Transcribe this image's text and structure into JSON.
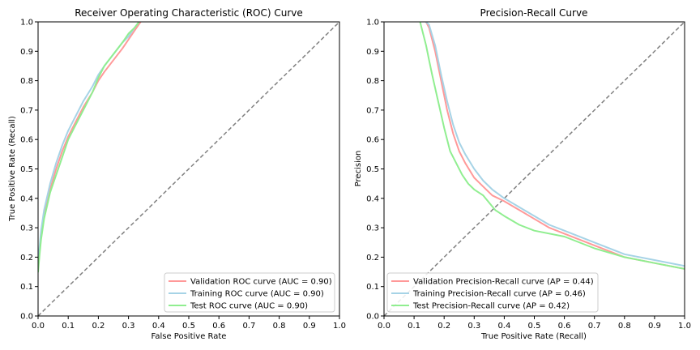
{
  "chart_data": [
    {
      "type": "line",
      "title": "Receiver Operating Characteristic (ROC) Curve",
      "xlabel": "False Positive Rate",
      "ylabel": "True Positive Rate (Recall)",
      "xlim": [
        0.0,
        1.0
      ],
      "ylim": [
        0.0,
        1.0
      ],
      "xticks": [
        "0.0",
        "0.1",
        "0.2",
        "0.3",
        "0.4",
        "0.5",
        "0.6",
        "0.7",
        "0.8",
        "0.9",
        "1.0"
      ],
      "yticks": [
        "0.0",
        "0.1",
        "0.2",
        "0.3",
        "0.4",
        "0.5",
        "0.6",
        "0.7",
        "0.8",
        "0.9",
        "1.0"
      ],
      "grid": false,
      "legend_position": "lower right",
      "reference_line": {
        "x": [
          0,
          1
        ],
        "y": [
          0,
          1
        ],
        "color": "#808080",
        "style": "dashed"
      },
      "series": [
        {
          "name": "Validation ROC curve (AUC = 0.90)",
          "color": "#ff9999",
          "x": [
            0.0,
            0.005,
            0.01,
            0.02,
            0.04,
            0.06,
            0.08,
            0.1,
            0.12,
            0.15,
            0.18,
            0.2,
            0.22,
            0.25,
            0.28,
            0.3,
            0.32,
            0.34
          ],
          "y": [
            0.16,
            0.22,
            0.27,
            0.34,
            0.43,
            0.5,
            0.56,
            0.61,
            0.65,
            0.71,
            0.76,
            0.8,
            0.83,
            0.87,
            0.91,
            0.94,
            0.97,
            1.0
          ]
        },
        {
          "name": "Training ROC curve (AUC = 0.90)",
          "color": "#a6d3e6",
          "x": [
            0.0,
            0.005,
            0.01,
            0.02,
            0.04,
            0.06,
            0.08,
            0.1,
            0.12,
            0.15,
            0.18,
            0.2,
            0.22,
            0.25,
            0.28,
            0.3,
            0.32,
            0.335
          ],
          "y": [
            0.17,
            0.24,
            0.29,
            0.36,
            0.45,
            0.52,
            0.58,
            0.63,
            0.67,
            0.73,
            0.78,
            0.82,
            0.85,
            0.89,
            0.93,
            0.95,
            0.98,
            1.0
          ]
        },
        {
          "name": "Test ROC curve (AUC = 0.90)",
          "color": "#90ee90",
          "x": [
            0.0,
            0.005,
            0.01,
            0.02,
            0.04,
            0.06,
            0.08,
            0.1,
            0.12,
            0.15,
            0.18,
            0.2,
            0.22,
            0.25,
            0.28,
            0.3,
            0.32,
            0.335
          ],
          "y": [
            0.15,
            0.21,
            0.26,
            0.33,
            0.42,
            0.48,
            0.54,
            0.6,
            0.64,
            0.7,
            0.76,
            0.81,
            0.85,
            0.89,
            0.93,
            0.96,
            0.98,
            1.0
          ]
        }
      ]
    },
    {
      "type": "line",
      "title": "Precision-Recall Curve",
      "xlabel": "True Positive Rate (Recall)",
      "ylabel": "Precision",
      "xlim": [
        0.0,
        1.0
      ],
      "ylim": [
        0.0,
        1.0
      ],
      "xticks": [
        "0.0",
        "0.1",
        "0.2",
        "0.3",
        "0.4",
        "0.5",
        "0.6",
        "0.7",
        "0.8",
        "0.9",
        "1.0"
      ],
      "yticks": [
        "0.0",
        "0.1",
        "0.2",
        "0.3",
        "0.4",
        "0.5",
        "0.6",
        "0.7",
        "0.8",
        "0.9",
        "1.0"
      ],
      "grid": false,
      "legend_position": "lower left",
      "reference_line": {
        "x": [
          0,
          1
        ],
        "y": [
          0,
          1
        ],
        "color": "#808080",
        "style": "dashed"
      },
      "series": [
        {
          "name": "Validation Precision-Recall curve (AP = 0.44)",
          "color": "#ff9999",
          "x": [
            0.14,
            0.15,
            0.17,
            0.19,
            0.21,
            0.23,
            0.25,
            0.27,
            0.3,
            0.33,
            0.36,
            0.4,
            0.45,
            0.5,
            0.55,
            0.6,
            0.7,
            0.8,
            0.9,
            1.0
          ],
          "y": [
            1.0,
            0.98,
            0.9,
            0.8,
            0.7,
            0.62,
            0.56,
            0.52,
            0.47,
            0.44,
            0.41,
            0.39,
            0.36,
            0.33,
            0.3,
            0.28,
            0.24,
            0.2,
            0.18,
            0.16
          ]
        },
        {
          "name": "Training Precision-Recall curve (AP = 0.46)",
          "color": "#a6d3e6",
          "x": [
            0.14,
            0.15,
            0.17,
            0.19,
            0.21,
            0.23,
            0.25,
            0.27,
            0.3,
            0.33,
            0.36,
            0.4,
            0.45,
            0.5,
            0.55,
            0.6,
            0.7,
            0.8,
            0.9,
            1.0
          ],
          "y": [
            1.0,
            0.99,
            0.92,
            0.82,
            0.73,
            0.65,
            0.59,
            0.55,
            0.5,
            0.46,
            0.43,
            0.4,
            0.37,
            0.34,
            0.31,
            0.29,
            0.25,
            0.21,
            0.19,
            0.17
          ]
        },
        {
          "name": "Test Precision-Recall curve (AP = 0.42)",
          "color": "#90ee90",
          "x": [
            0.12,
            0.13,
            0.14,
            0.15,
            0.16,
            0.18,
            0.2,
            0.22,
            0.24,
            0.26,
            0.28,
            0.3,
            0.33,
            0.37,
            0.4,
            0.45,
            0.5,
            0.6,
            0.7,
            0.8,
            0.9,
            1.0
          ],
          "y": [
            1.0,
            0.96,
            0.92,
            0.87,
            0.82,
            0.73,
            0.64,
            0.56,
            0.52,
            0.48,
            0.45,
            0.43,
            0.41,
            0.36,
            0.34,
            0.31,
            0.29,
            0.27,
            0.23,
            0.2,
            0.18,
            0.16
          ]
        }
      ]
    }
  ]
}
